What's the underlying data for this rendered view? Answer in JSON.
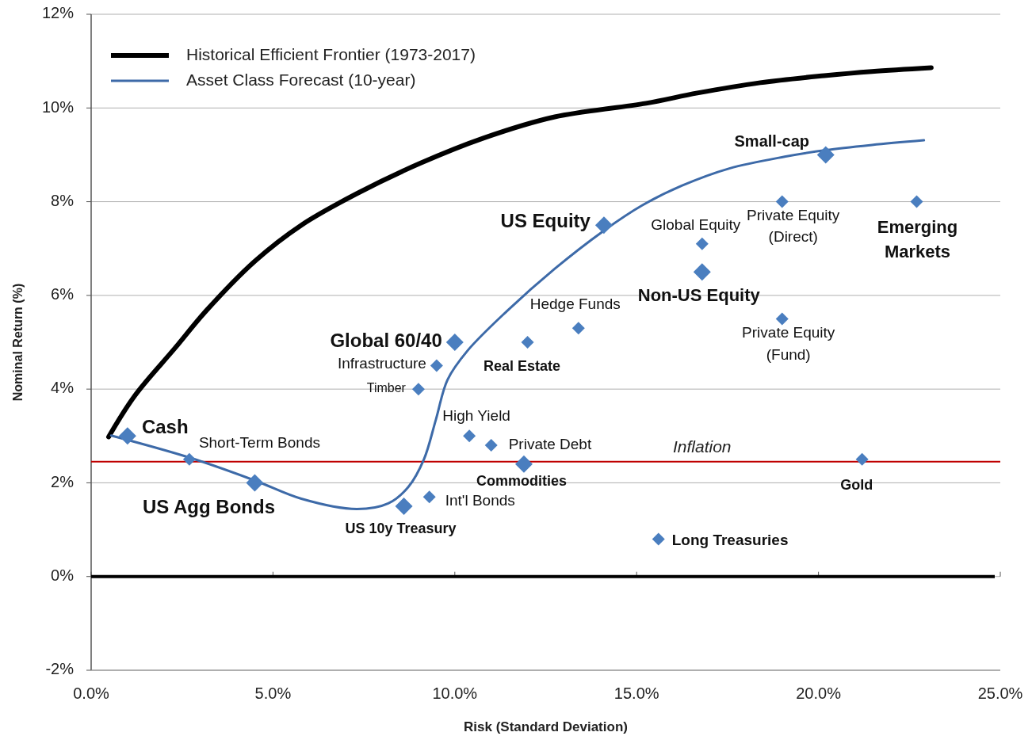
{
  "chart_data": {
    "type": "scatter",
    "xlabel": "Risk (Standard Deviation)",
    "ylabel": "Nominal Return (%)",
    "xlim": [
      0,
      25
    ],
    "xticks": [
      {
        "value": 0,
        "label": "0.0%"
      },
      {
        "value": 5,
        "label": "5.0%"
      },
      {
        "value": 10,
        "label": "10.0%"
      },
      {
        "value": 15,
        "label": "15.0%"
      },
      {
        "value": 20,
        "label": "20.0%"
      },
      {
        "value": 25,
        "label": "25.0%"
      }
    ],
    "ylim": [
      -2,
      12
    ],
    "yticks": [
      {
        "value": -2,
        "label": "-2%"
      },
      {
        "value": 0,
        "label": "0%"
      },
      {
        "value": 2,
        "label": "2%"
      },
      {
        "value": 4,
        "label": "4%"
      },
      {
        "value": 6,
        "label": "6%"
      },
      {
        "value": 8,
        "label": "8%"
      },
      {
        "value": 10,
        "label": "10%"
      },
      {
        "value": 12,
        "label": "12%"
      }
    ],
    "grid": "y",
    "legend": "top left",
    "series": [
      {
        "name": "Historical Efficient Frontier (1973-2017)",
        "type": "line",
        "color": "#000000",
        "marker": "none",
        "x": [
          0.48,
          1.2,
          2.3,
          3.16,
          4.5,
          5.78,
          7.3,
          9.05,
          10.8,
          12.75,
          15.26,
          16.67,
          18.4,
          20.16,
          21.47,
          23.1
        ],
        "values": [
          2.98,
          3.86,
          4.87,
          5.67,
          6.73,
          7.5,
          8.17,
          8.82,
          9.36,
          9.81,
          10.1,
          10.32,
          10.54,
          10.69,
          10.78,
          10.86
        ]
      },
      {
        "name": "Asset Class Forecast (10-year)",
        "type": "line",
        "color": "#3d6aa8",
        "marker": "none",
        "x": [
          0.55,
          2.7,
          4.5,
          5.78,
          7.3,
          8.17,
          8.72,
          9.15,
          9.48,
          9.8,
          10.35,
          11.44,
          12.75,
          14.06,
          15.15,
          16.24,
          17.55,
          19.07,
          20.2,
          21.47,
          22.9
        ],
        "values": [
          3.01,
          2.54,
          2.05,
          1.66,
          1.44,
          1.56,
          1.91,
          2.5,
          3.35,
          4.2,
          4.82,
          5.67,
          6.57,
          7.36,
          7.92,
          8.34,
          8.71,
          8.96,
          9.1,
          9.21,
          9.31
        ]
      },
      {
        "type": "scatter",
        "color": "#4a7ebf",
        "marker": "diamond",
        "x": [
          1.0,
          4.5,
          8.6,
          10.0,
          11.9,
          14.1,
          16.8,
          20.2
        ],
        "values": [
          3.0,
          2.0,
          1.5,
          5.0,
          2.4,
          7.5,
          6.5,
          9.0
        ]
      },
      {
        "type": "scatter",
        "color": "#4a7ebf",
        "marker": "diamond",
        "x": [
          2.7,
          9.3,
          9.0,
          9.5,
          10.4,
          11.0,
          12.0,
          13.4,
          15.6,
          16.8,
          19.0,
          19.0,
          21.2,
          22.7
        ],
        "values": [
          2.5,
          1.7,
          4.0,
          4.5,
          3.0,
          2.8,
          5.0,
          5.3,
          0.8,
          7.1,
          8.0,
          5.5,
          2.5,
          8.0
        ]
      }
    ],
    "ref_lines": [
      {
        "axis": "y",
        "value": 2.45,
        "label": "Inflation",
        "color": "#c00000",
        "line_style": "solid"
      }
    ],
    "annotations": [
      {
        "text": "Cash",
        "x": 1.0,
        "y": 3.0
      },
      {
        "text": "Short-Term Bonds",
        "x": 2.7,
        "y": 2.5
      },
      {
        "text": "US Agg Bonds",
        "x": 4.5,
        "y": 2.0
      },
      {
        "text": "US 10y Treasury",
        "x": 8.6,
        "y": 1.5
      },
      {
        "text": "Int'l Bonds",
        "x": 9.3,
        "y": 1.7
      },
      {
        "text": "Timber",
        "x": 9.0,
        "y": 4.0
      },
      {
        "text": "Infrastructure",
        "x": 9.5,
        "y": 4.5
      },
      {
        "text": "Global 60/40",
        "x": 10.0,
        "y": 5.0
      },
      {
        "text": "High Yield",
        "x": 10.4,
        "y": 3.0
      },
      {
        "text": "Private Debt",
        "x": 11.0,
        "y": 2.8
      },
      {
        "text": "Commodities",
        "x": 11.9,
        "y": 2.4
      },
      {
        "text": "Real Estate",
        "x": 12.0,
        "y": 5.0
      },
      {
        "text": "Hedge Funds",
        "x": 13.4,
        "y": 5.3
      },
      {
        "text": "US Equity",
        "x": 14.1,
        "y": 7.5
      },
      {
        "text": "Long Treasuries",
        "x": 15.6,
        "y": 0.8
      },
      {
        "text": "Global Equity",
        "x": 16.8,
        "y": 7.1
      },
      {
        "text": "Non-US Equity",
        "x": 16.8,
        "y": 6.5
      },
      {
        "text": "Private Equity (Direct)",
        "x": 19.0,
        "y": 8.0
      },
      {
        "text": "Private Equity (Fund)",
        "x": 19.0,
        "y": 5.5
      },
      {
        "text": "Small-cap",
        "x": 20.2,
        "y": 9.0
      },
      {
        "text": "Gold",
        "x": 21.2,
        "y": 2.5
      },
      {
        "text": "Emerging Markets",
        "x": 22.7,
        "y": 8.0
      }
    ]
  }
}
